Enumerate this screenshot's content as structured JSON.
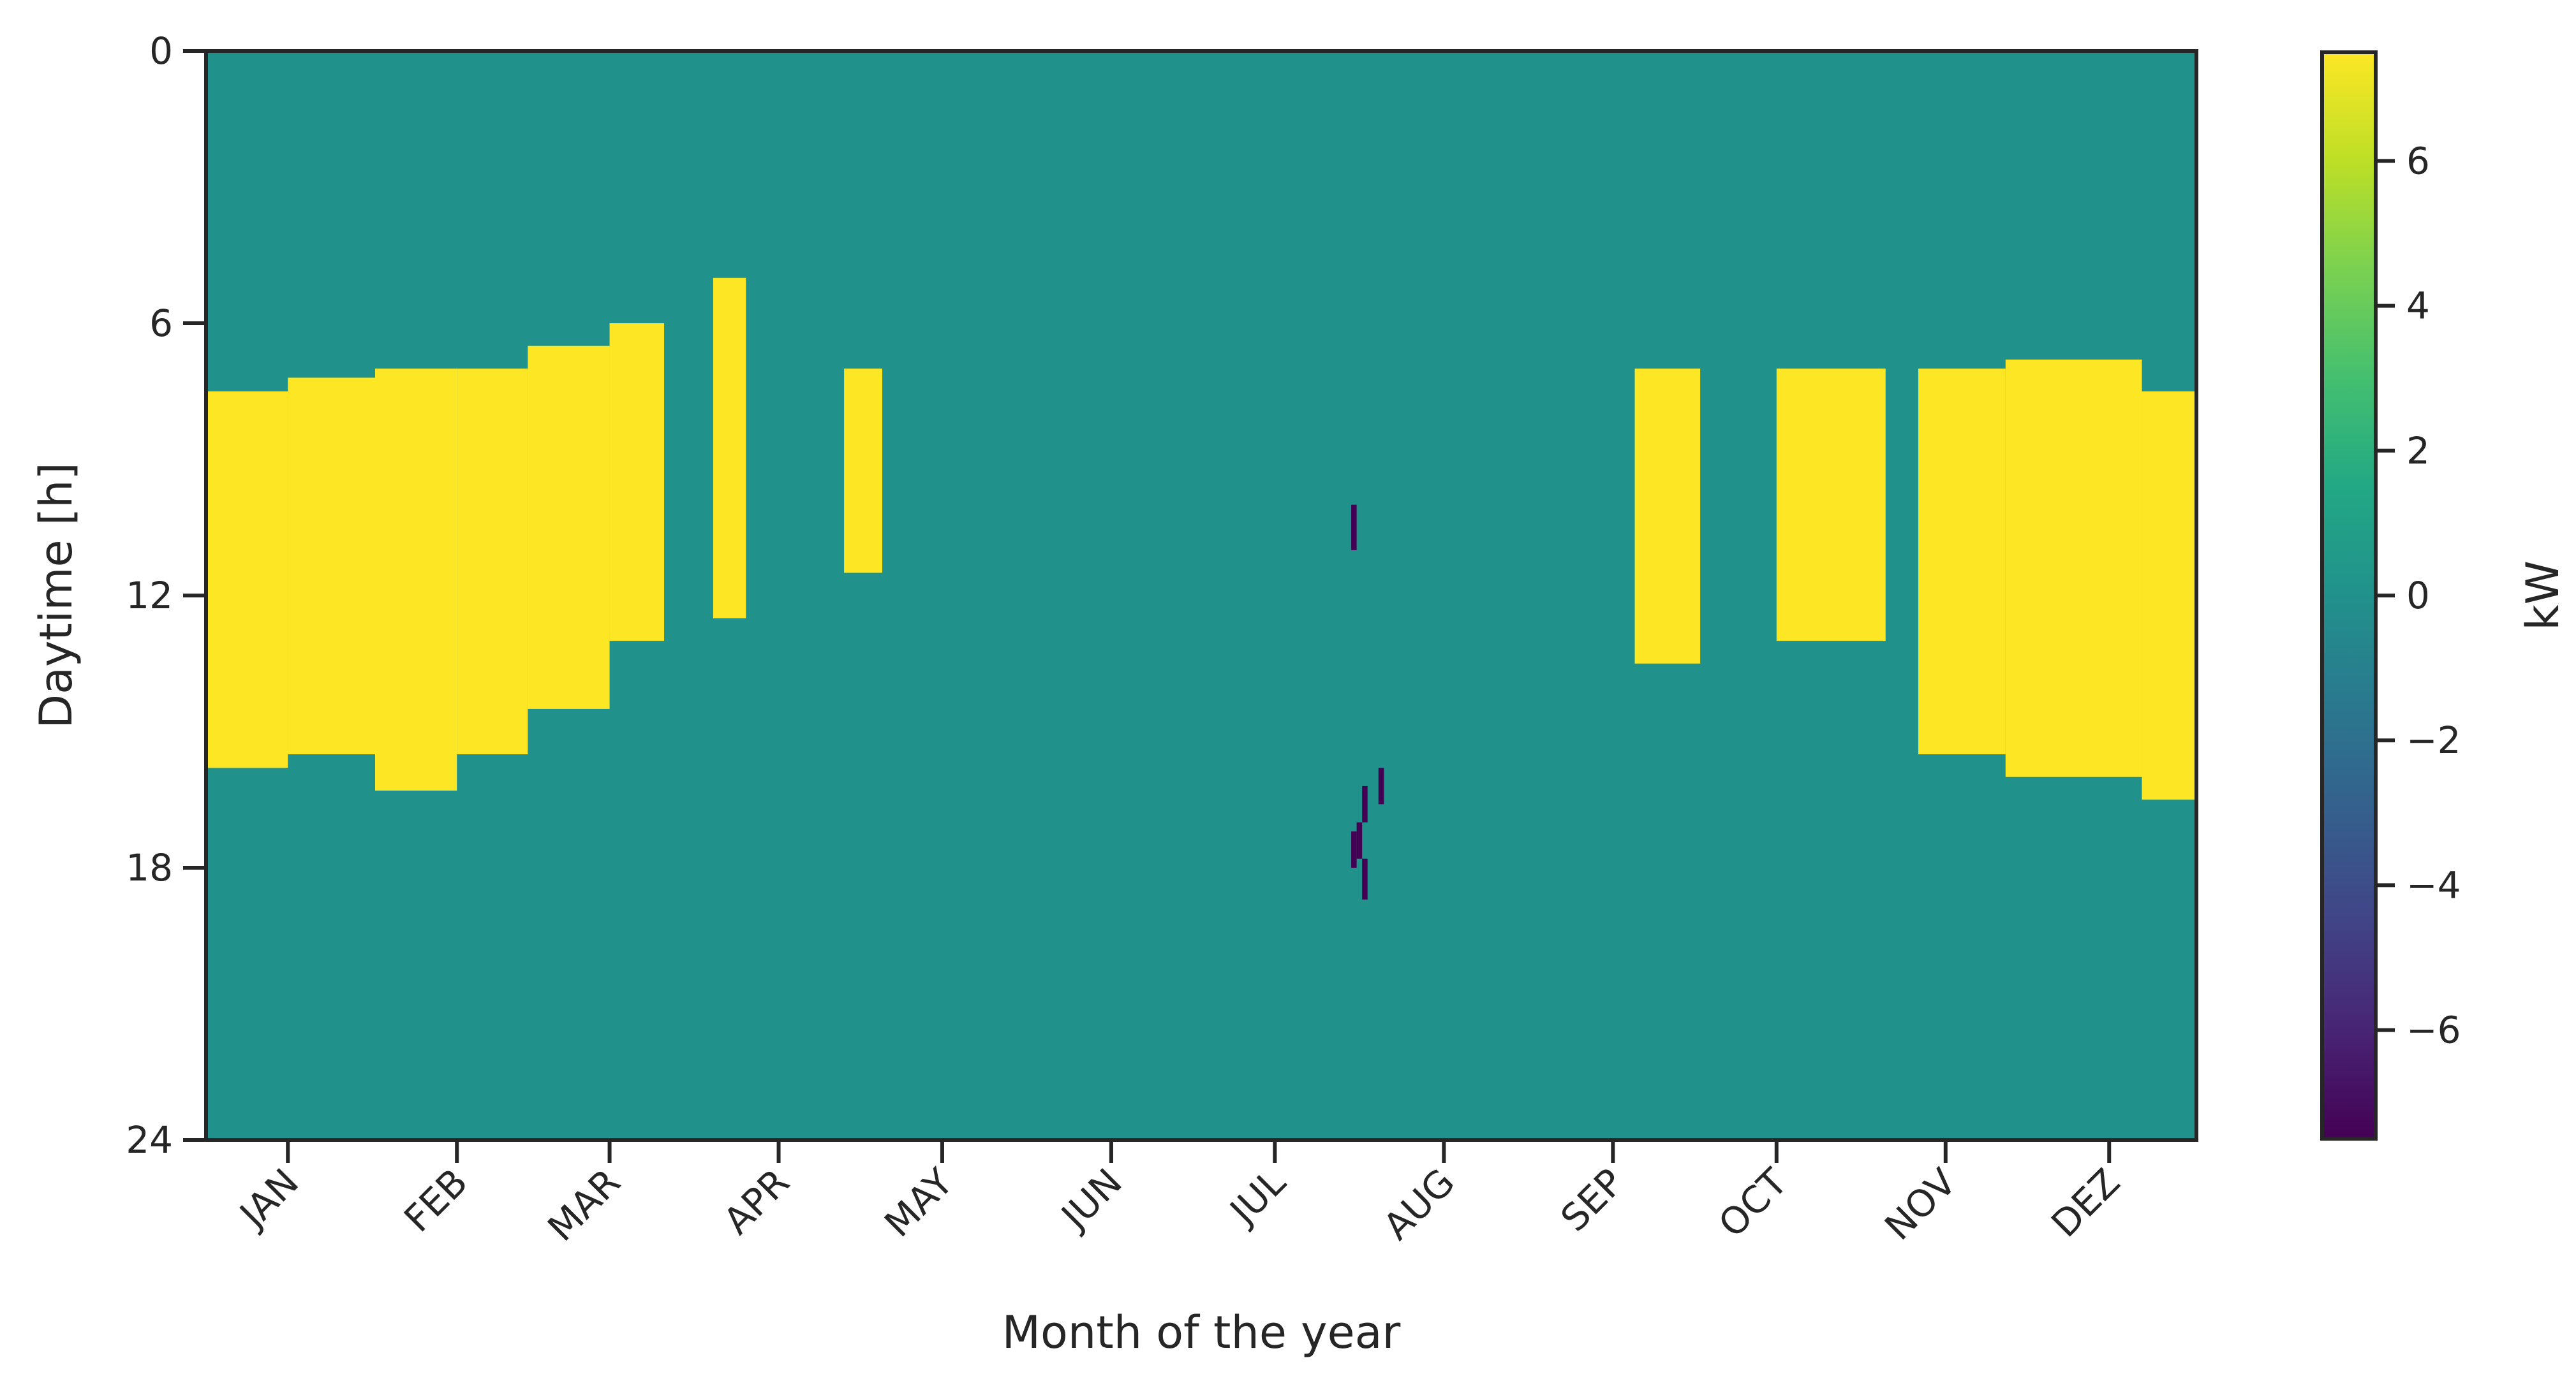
{
  "chart_data": {
    "type": "heatmap",
    "title": "",
    "xlabel": "Month of the year",
    "ylabel": "Daytime [h]",
    "colorbar_label": "kW",
    "colormap": "viridis",
    "color_range": [
      -7.5,
      7.5
    ],
    "background_value": 0,
    "background_color": "#21918c",
    "saturated_high_color": "#fde725",
    "saturated_low_color": "#440154",
    "x_axis": {
      "range_days": [
        0,
        365
      ],
      "tick_days": [
        15,
        46,
        74,
        105,
        135,
        166,
        196,
        227,
        258,
        288,
        319,
        349
      ]
    },
    "x_tick_labels": [
      "JAN",
      "FEB",
      "MAR",
      "APR",
      "MAY",
      "JUN",
      "JUL",
      "AUG",
      "SEP",
      "OCT",
      "NOV",
      "DEZ"
    ],
    "y_axis": {
      "range_hours": [
        0,
        24
      ],
      "inverted": true
    },
    "y_ticks": [
      0,
      6,
      12,
      18,
      24
    ],
    "y_tick_labels": [
      "0",
      "6",
      "12",
      "18",
      "24"
    ],
    "colorbar_ticks": [
      6,
      4,
      2,
      0,
      -2,
      -4,
      -6
    ],
    "colorbar_tick_labels": [
      "6",
      "4",
      "2",
      "0",
      "−2",
      "−4",
      "−6"
    ],
    "cells": [
      {
        "day_from": 0,
        "day_to": 15,
        "hour_from": 7.5,
        "hour_to": 15.8,
        "value": 7.5
      },
      {
        "day_from": 15,
        "day_to": 31,
        "hour_from": 7.2,
        "hour_to": 15.5,
        "value": 7.5
      },
      {
        "day_from": 31,
        "day_to": 46,
        "hour_from": 7.0,
        "hour_to": 16.3,
        "value": 7.5
      },
      {
        "day_from": 46,
        "day_to": 59,
        "hour_from": 7.0,
        "hour_to": 15.5,
        "value": 7.5
      },
      {
        "day_from": 59,
        "day_to": 74,
        "hour_from": 6.5,
        "hour_to": 14.5,
        "value": 7.5
      },
      {
        "day_from": 74,
        "day_to": 84,
        "hour_from": 6.0,
        "hour_to": 13.0,
        "value": 7.5
      },
      {
        "day_from": 93,
        "day_to": 99,
        "hour_from": 5.0,
        "hour_to": 12.5,
        "value": 7.5
      },
      {
        "day_from": 117,
        "day_to": 124,
        "hour_from": 7.0,
        "hour_to": 11.5,
        "value": 7.5
      },
      {
        "day_from": 262,
        "day_to": 274,
        "hour_from": 7.0,
        "hour_to": 13.5,
        "value": 7.5
      },
      {
        "day_from": 288,
        "day_to": 308,
        "hour_from": 7.0,
        "hour_to": 13.0,
        "value": 7.5
      },
      {
        "day_from": 314,
        "day_to": 330,
        "hour_from": 7.0,
        "hour_to": 15.5,
        "value": 7.5
      },
      {
        "day_from": 330,
        "day_to": 355,
        "hour_from": 6.8,
        "hour_to": 16.0,
        "value": 7.5
      },
      {
        "day_from": 355,
        "day_to": 365,
        "hour_from": 7.5,
        "hour_to": 16.5,
        "value": 7.5
      },
      {
        "day_from": 210,
        "day_to": 211,
        "hour_from": 10.0,
        "hour_to": 11.0,
        "value": -7.0
      },
      {
        "day_from": 212,
        "day_to": 213,
        "hour_from": 16.2,
        "hour_to": 17.0,
        "value": -7.0
      },
      {
        "day_from": 215,
        "day_to": 216,
        "hour_from": 15.8,
        "hour_to": 16.6,
        "value": -7.0
      },
      {
        "day_from": 210,
        "day_to": 211,
        "hour_from": 17.2,
        "hour_to": 18.0,
        "value": -7.0
      },
      {
        "day_from": 211,
        "day_to": 212,
        "hour_from": 17.0,
        "hour_to": 17.8,
        "value": -7.0
      },
      {
        "day_from": 212,
        "day_to": 213,
        "hour_from": 17.8,
        "hour_to": 18.7,
        "value": -7.0
      }
    ]
  }
}
